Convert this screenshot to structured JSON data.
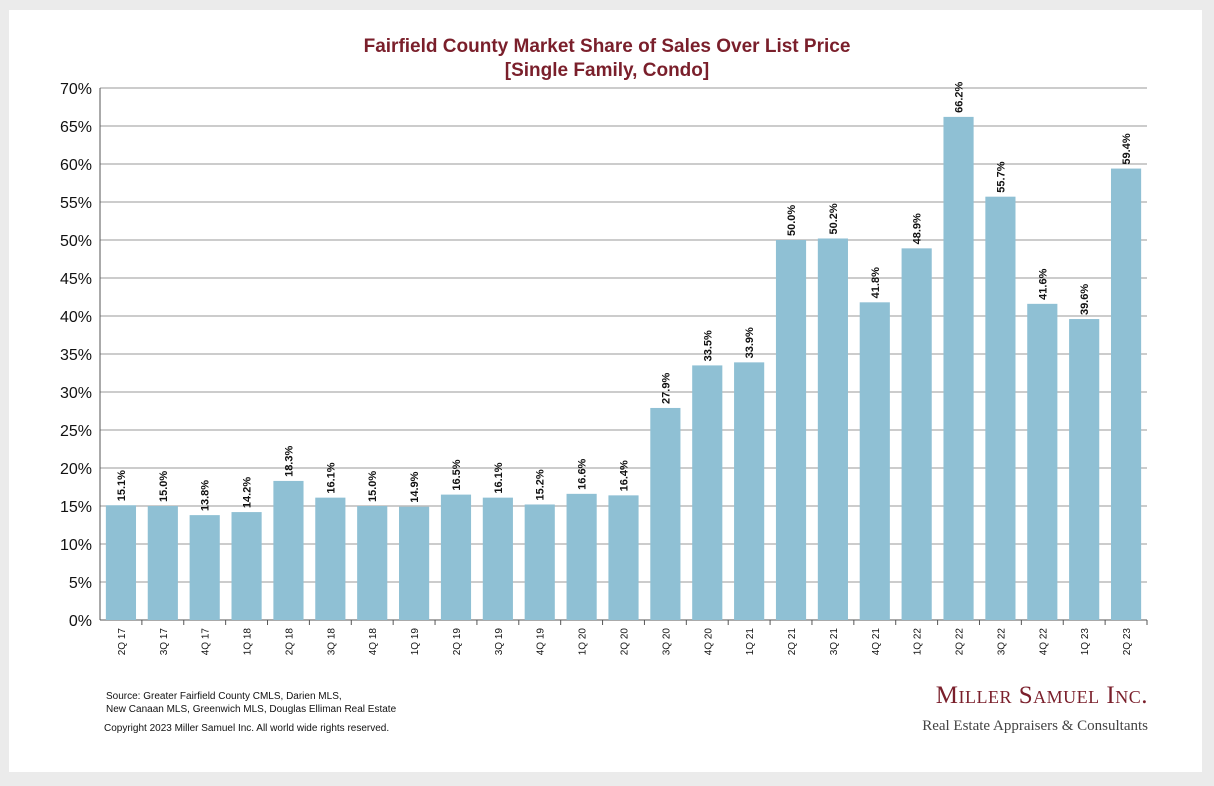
{
  "chart_data": {
    "type": "bar",
    "title": "Fairfield County Market Share of Sales Over List Price",
    "subtitle": "[Single Family, Condo]",
    "categories": [
      "2Q 17",
      "3Q 17",
      "4Q 17",
      "1Q 18",
      "2Q 18",
      "3Q 18",
      "4Q 18",
      "1Q 19",
      "2Q 19",
      "3Q 19",
      "4Q 19",
      "1Q 20",
      "2Q 20",
      "3Q 20",
      "4Q 20",
      "1Q 21",
      "2Q 21",
      "3Q 21",
      "4Q 21",
      "1Q 22",
      "2Q 22",
      "3Q 22",
      "4Q 22",
      "1Q 23",
      "2Q 23"
    ],
    "values": [
      15.1,
      15.0,
      13.8,
      14.2,
      18.3,
      16.1,
      15.0,
      14.9,
      16.5,
      16.1,
      15.2,
      16.6,
      16.4,
      27.9,
      33.5,
      33.9,
      50.0,
      50.2,
      41.8,
      48.9,
      66.2,
      55.7,
      41.6,
      39.6,
      59.4
    ],
    "data_labels": [
      "15.1%",
      "15.0%",
      "13.8%",
      "14.2%",
      "18.3%",
      "16.1%",
      "15.0%",
      "14.9%",
      "16.5%",
      "16.1%",
      "15.2%",
      "16.6%",
      "16.4%",
      "27.9%",
      "33.5%",
      "33.9%",
      "50.0%",
      "50.2%",
      "41.8%",
      "48.9%",
      "66.2%",
      "55.7%",
      "41.6%",
      "39.6%",
      "59.4%"
    ],
    "ylim": [
      0,
      70
    ],
    "yticks": [
      "0%",
      "5%",
      "10%",
      "15%",
      "20%",
      "25%",
      "30%",
      "35%",
      "40%",
      "45%",
      "50%",
      "55%",
      "60%",
      "65%",
      "70%"
    ],
    "grid": true,
    "bar_color": "#8fc0d4"
  },
  "footer": {
    "source_line1": "Source:  Greater Fairfield County CMLS, Darien MLS,",
    "source_line2": "New Canaan MLS, Greenwich MLS, Douglas Elliman Real Estate",
    "copyright": "Copyright 2023 Miller Samuel Inc.  All world wide rights reserved."
  },
  "brand": {
    "name": "Miller Samuel Inc.",
    "tagline": "Real Estate Appraisers & Consultants"
  },
  "colors": {
    "title": "#7a1f2b",
    "bar": "#8fc0d4",
    "grid": "#9a9a9a"
  }
}
